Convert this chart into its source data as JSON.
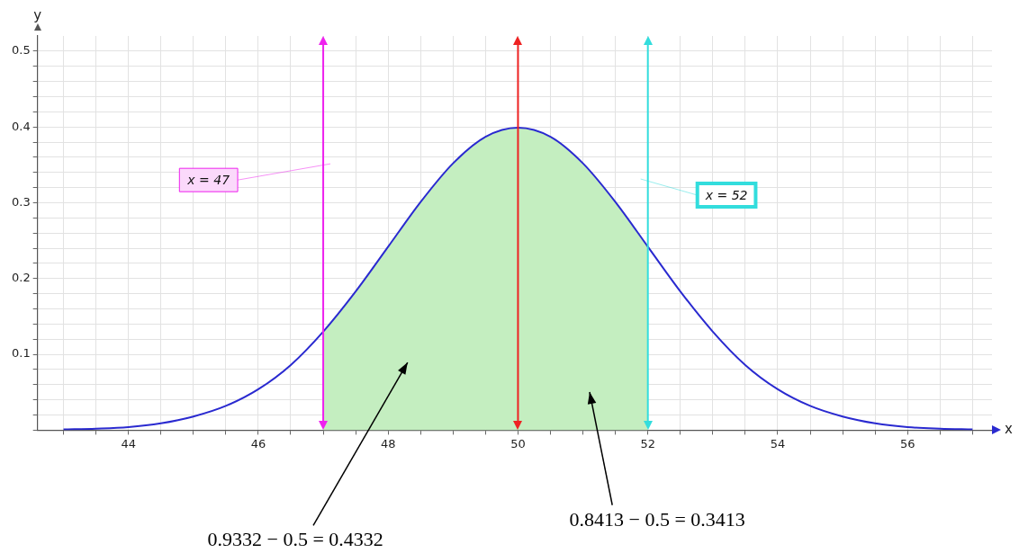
{
  "chart_data": {
    "type": "line",
    "xlabel": "x",
    "ylabel": "y",
    "xlim": [
      42.6,
      57.3
    ],
    "ylim": [
      0,
      0.52
    ],
    "xticks": [
      {
        "value": 43,
        "label": null
      },
      {
        "value": 43.5,
        "label": null
      },
      44,
      {
        "value": 44.5,
        "label": null
      },
      {
        "value": 45,
        "label": null
      },
      {
        "value": 45.5,
        "label": null
      },
      46,
      {
        "value": 46.5,
        "label": null
      },
      {
        "value": 47,
        "label": null
      },
      {
        "value": 47.5,
        "label": null
      },
      48,
      {
        "value": 48.5,
        "label": null
      },
      {
        "value": 49,
        "label": null
      },
      {
        "value": 49.5,
        "label": null
      },
      50,
      {
        "value": 50.5,
        "label": null
      },
      {
        "value": 51,
        "label": null
      },
      {
        "value": 51.5,
        "label": null
      },
      52,
      {
        "value": 52.5,
        "label": null
      },
      {
        "value": 53,
        "label": null
      },
      {
        "value": 53.5,
        "label": null
      },
      54,
      {
        "value": 54.5,
        "label": null
      },
      {
        "value": 55,
        "label": null
      },
      {
        "value": 55.5,
        "label": null
      },
      56,
      {
        "value": 56.5,
        "label": null
      },
      {
        "value": 57,
        "label": null
      }
    ],
    "yticks": [
      {
        "value": 0,
        "label": null
      },
      {
        "value": 0.02,
        "label": null
      },
      {
        "value": 0.04,
        "label": null
      },
      {
        "value": 0.06,
        "label": null
      },
      {
        "value": 0.08,
        "label": null
      },
      0.1,
      {
        "value": 0.12,
        "label": null
      },
      {
        "value": 0.14,
        "label": null
      },
      {
        "value": 0.16,
        "label": null
      },
      {
        "value": 0.18,
        "label": null
      },
      0.2,
      {
        "value": 0.22,
        "label": null
      },
      {
        "value": 0.24,
        "label": null
      },
      {
        "value": 0.26,
        "label": null
      },
      {
        "value": 0.28,
        "label": null
      },
      0.3,
      {
        "value": 0.32,
        "label": null
      },
      {
        "value": 0.34,
        "label": null
      },
      {
        "value": 0.36,
        "label": null
      },
      {
        "value": 0.38,
        "label": null
      },
      0.4,
      {
        "value": 0.42,
        "label": null
      },
      {
        "value": 0.44,
        "label": null
      },
      {
        "value": 0.46,
        "label": null
      },
      {
        "value": 0.48,
        "label": null
      },
      0.5
    ],
    "grid": true,
    "legend": false,
    "marker": "none",
    "line_style": "solid",
    "series": [
      {
        "type": "area",
        "color": "#c4eec0",
        "x": [
          47,
          47.5,
          48,
          48.5,
          49,
          49.5,
          50,
          50.5,
          51,
          51.5,
          52
        ],
        "values": [
          0.13,
          0.183,
          0.242,
          0.301,
          0.352,
          0.387,
          0.399,
          0.387,
          0.352,
          0.301,
          0.242
        ]
      },
      {
        "type": "line",
        "color": "#2a2ad0",
        "x": [
          43,
          43.5,
          44,
          44.5,
          45,
          45.5,
          46,
          46.5,
          47,
          47.5,
          48,
          48.5,
          49,
          49.5,
          50,
          50.5,
          51,
          51.5,
          52,
          52.5,
          53,
          53.5,
          54,
          54.5,
          55,
          55.5,
          56,
          56.5,
          57
        ],
        "values": [
          0.001,
          0.002,
          0.004,
          0.009,
          0.018,
          0.032,
          0.054,
          0.086,
          0.13,
          0.183,
          0.242,
          0.301,
          0.352,
          0.387,
          0.399,
          0.387,
          0.352,
          0.301,
          0.242,
          0.183,
          0.13,
          0.086,
          0.054,
          0.032,
          0.018,
          0.009,
          0.004,
          0.002,
          0.001
        ]
      }
    ],
    "ref_lines": [
      {
        "axis": "x",
        "value": 47,
        "label": "x = 47",
        "color": "#ee22ee"
      },
      {
        "axis": "x",
        "value": 50,
        "color": "#ee2222"
      },
      {
        "axis": "x",
        "value": 52,
        "label": "x = 52",
        "color": "#33dddd"
      }
    ],
    "annotations": [
      "0.9332 − 0.5 = 0.4332",
      "0.8413 − 0.5 = 0.3413"
    ]
  }
}
